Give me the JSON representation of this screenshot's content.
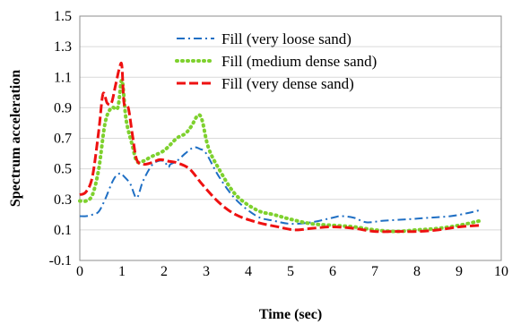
{
  "chart_data": {
    "type": "line",
    "title": "",
    "xlabel": "Time (sec)",
    "ylabel": "Spectrum acceleration",
    "xlim": [
      0,
      10
    ],
    "ylim": [
      -0.1,
      1.5
    ],
    "xticks": [
      0,
      1,
      2,
      3,
      4,
      5,
      6,
      7,
      8,
      9,
      10
    ],
    "yticks": [
      -0.1,
      0.1,
      0.3,
      0.5,
      0.7,
      0.9,
      1.1,
      1.3,
      1.5
    ],
    "xtick_labels": [
      "0",
      "1",
      "2",
      "3",
      "4",
      "5",
      "6",
      "7",
      "8",
      "9",
      "10"
    ],
    "ytick_labels": [
      "-0.1",
      "0.1",
      "0.3",
      "0.5",
      "0.7",
      "0.9",
      "1.1",
      "1.3",
      "1.5"
    ],
    "grid": "horizontal",
    "legend_position": "top-right",
    "series": [
      {
        "name": "Fill (very loose sand)",
        "color": "#1f6fc4",
        "line_style": "dash-dot",
        "x": [
          0,
          0.15,
          0.3,
          0.45,
          0.6,
          0.8,
          0.95,
          1.05,
          1.2,
          1.35,
          1.5,
          1.7,
          1.85,
          2.0,
          2.1,
          2.15,
          2.3,
          2.5,
          2.7,
          2.85,
          3.0,
          3.3,
          3.7,
          4.2,
          4.6,
          5.0,
          5.5,
          6.0,
          6.2,
          6.5,
          6.8,
          7.2,
          7.8,
          8.3,
          8.8,
          9.2,
          9.5
        ],
        "y": [
          0.19,
          0.19,
          0.2,
          0.22,
          0.3,
          0.43,
          0.47,
          0.45,
          0.4,
          0.31,
          0.42,
          0.52,
          0.55,
          0.55,
          0.51,
          0.53,
          0.55,
          0.6,
          0.64,
          0.63,
          0.6,
          0.45,
          0.3,
          0.19,
          0.16,
          0.14,
          0.15,
          0.18,
          0.19,
          0.18,
          0.15,
          0.16,
          0.17,
          0.18,
          0.19,
          0.21,
          0.23
        ]
      },
      {
        "name": "Fill (medium dense sand)",
        "color": "#7ed12e",
        "line_style": "dotted",
        "x": [
          0,
          0.15,
          0.3,
          0.45,
          0.6,
          0.75,
          0.9,
          1.0,
          1.1,
          1.25,
          1.35,
          1.5,
          1.7,
          2.0,
          2.3,
          2.5,
          2.65,
          2.8,
          2.9,
          3.05,
          3.3,
          3.7,
          4.2,
          4.6,
          5.0,
          5.5,
          6.0,
          6.5,
          7.0,
          7.5,
          8.0,
          8.5,
          9.0,
          9.5
        ],
        "y": [
          0.29,
          0.29,
          0.33,
          0.5,
          0.8,
          0.9,
          0.9,
          1.08,
          0.82,
          0.65,
          0.55,
          0.55,
          0.58,
          0.62,
          0.7,
          0.73,
          0.78,
          0.85,
          0.82,
          0.64,
          0.5,
          0.33,
          0.23,
          0.2,
          0.17,
          0.14,
          0.13,
          0.12,
          0.1,
          0.09,
          0.1,
          0.11,
          0.13,
          0.16
        ]
      },
      {
        "name": "Fill (very dense sand)",
        "color": "#ee1111",
        "line_style": "dashed",
        "x": [
          0,
          0.15,
          0.3,
          0.45,
          0.55,
          0.65,
          0.75,
          0.85,
          0.95,
          1.0,
          1.05,
          1.15,
          1.25,
          1.35,
          1.5,
          1.7,
          1.9,
          2.1,
          2.3,
          2.6,
          2.9,
          3.3,
          3.7,
          4.2,
          4.7,
          5.1,
          5.5,
          6.0,
          6.5,
          7.0,
          7.5,
          8.0,
          8.5,
          9.0,
          9.5
        ],
        "y": [
          0.33,
          0.35,
          0.45,
          0.75,
          0.99,
          0.93,
          0.93,
          1.05,
          1.17,
          1.17,
          0.93,
          0.9,
          0.72,
          0.56,
          0.53,
          0.54,
          0.56,
          0.55,
          0.54,
          0.5,
          0.4,
          0.28,
          0.2,
          0.15,
          0.12,
          0.1,
          0.11,
          0.12,
          0.11,
          0.09,
          0.09,
          0.09,
          0.1,
          0.12,
          0.13
        ]
      }
    ]
  }
}
